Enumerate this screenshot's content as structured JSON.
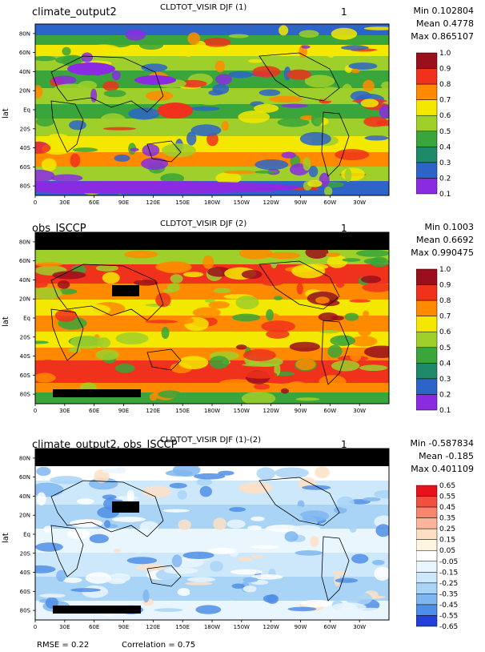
{
  "figure": {
    "footer": {
      "rmse": "RMSE = 0.22",
      "correlation": "Correlation = 0.75"
    }
  },
  "chart_data": [
    {
      "type": "heatmap",
      "case_label": "climate_output2",
      "title": "CLDTOT_VISIR DJF (1)",
      "panel_number": "1",
      "stats": {
        "min": "Min 0.102804",
        "mean": "Mean 0.4778",
        "max": "Max 0.865107"
      },
      "ylabel": "lat",
      "x_ticks": [
        "0",
        "30E",
        "60E",
        "90E",
        "120E",
        "150E",
        "180W",
        "150W",
        "120W",
        "90W",
        "60W",
        "30W"
      ],
      "y_ticks": [
        "80N",
        "60N",
        "40N",
        "20N",
        "Eq",
        "20S",
        "40S",
        "60S",
        "80S"
      ],
      "xlim": [
        0,
        360
      ],
      "ylim": [
        -90,
        90
      ],
      "colorbar": {
        "labels": [
          "1.0",
          "0.9",
          "0.8",
          "0.7",
          "0.6",
          "0.5",
          "0.4",
          "0.3",
          "0.2",
          "0.1"
        ],
        "colors": [
          "#9a0f1c",
          "#f0311c",
          "#ff8a00",
          "#f5e800",
          "#9fcf2a",
          "#3aa53a",
          "#1e8a6a",
          "#2d64c8",
          "#8a2be2"
        ]
      }
    },
    {
      "type": "heatmap",
      "case_label": "obs_ISCCP",
      "title": "CLDTOT_VISIR DJF (2)",
      "panel_number": "1",
      "stats": {
        "min": "Min 0.1003",
        "mean": "Mean 0.6692",
        "max": "Max 0.990475"
      },
      "ylabel": "lat",
      "x_ticks": [
        "0",
        "30E",
        "60E",
        "90E",
        "120E",
        "150E",
        "180W",
        "150W",
        "120W",
        "90W",
        "60W",
        "30W"
      ],
      "y_ticks": [
        "80N",
        "60N",
        "40N",
        "20N",
        "Eq",
        "20S",
        "40S",
        "60S",
        "80S"
      ],
      "xlim": [
        0,
        360
      ],
      "ylim": [
        -90,
        90
      ],
      "colorbar": {
        "labels": [
          "1.0",
          "0.9",
          "0.8",
          "0.7",
          "0.6",
          "0.5",
          "0.4",
          "0.3",
          "0.2",
          "0.1"
        ],
        "colors": [
          "#9a0f1c",
          "#f0311c",
          "#ff8a00",
          "#f5e800",
          "#9fcf2a",
          "#3aa53a",
          "#1e8a6a",
          "#2d64c8",
          "#8a2be2"
        ]
      }
    },
    {
      "type": "heatmap",
      "case_label": "climate_output2, obs_ISCCP",
      "title": "CLDTOT_VISIR DJF (1)-(2)",
      "panel_number": "1",
      "stats": {
        "min": "Min -0.587834",
        "mean": "Mean -0.185",
        "max": "Max 0.401109"
      },
      "ylabel": "lat",
      "x_ticks": [
        "0",
        "30E",
        "60E",
        "90E",
        "120E",
        "150E",
        "180W",
        "150W",
        "120W",
        "90W",
        "60W",
        "30W"
      ],
      "y_ticks": [
        "80N",
        "60N",
        "40N",
        "20N",
        "Eq",
        "20S",
        "40S",
        "60S",
        "80S"
      ],
      "xlim": [
        0,
        360
      ],
      "ylim": [
        -90,
        90
      ],
      "colorbar": {
        "labels": [
          "0.65",
          "0.55",
          "0.45",
          "0.35",
          "0.25",
          "0.15",
          "0.05",
          "-0.05",
          "-0.15",
          "-0.25",
          "-0.35",
          "-0.45",
          "-0.55",
          "-0.65"
        ],
        "colors": [
          "#e8121c",
          "#f2503e",
          "#f7866f",
          "#fbb59b",
          "#fde0c4",
          "#fff5e0",
          "#ffffff",
          "#eaf6fe",
          "#cde8fb",
          "#a9d4f6",
          "#7fb6f0",
          "#4f8ee6",
          "#2340d8"
        ]
      }
    }
  ]
}
